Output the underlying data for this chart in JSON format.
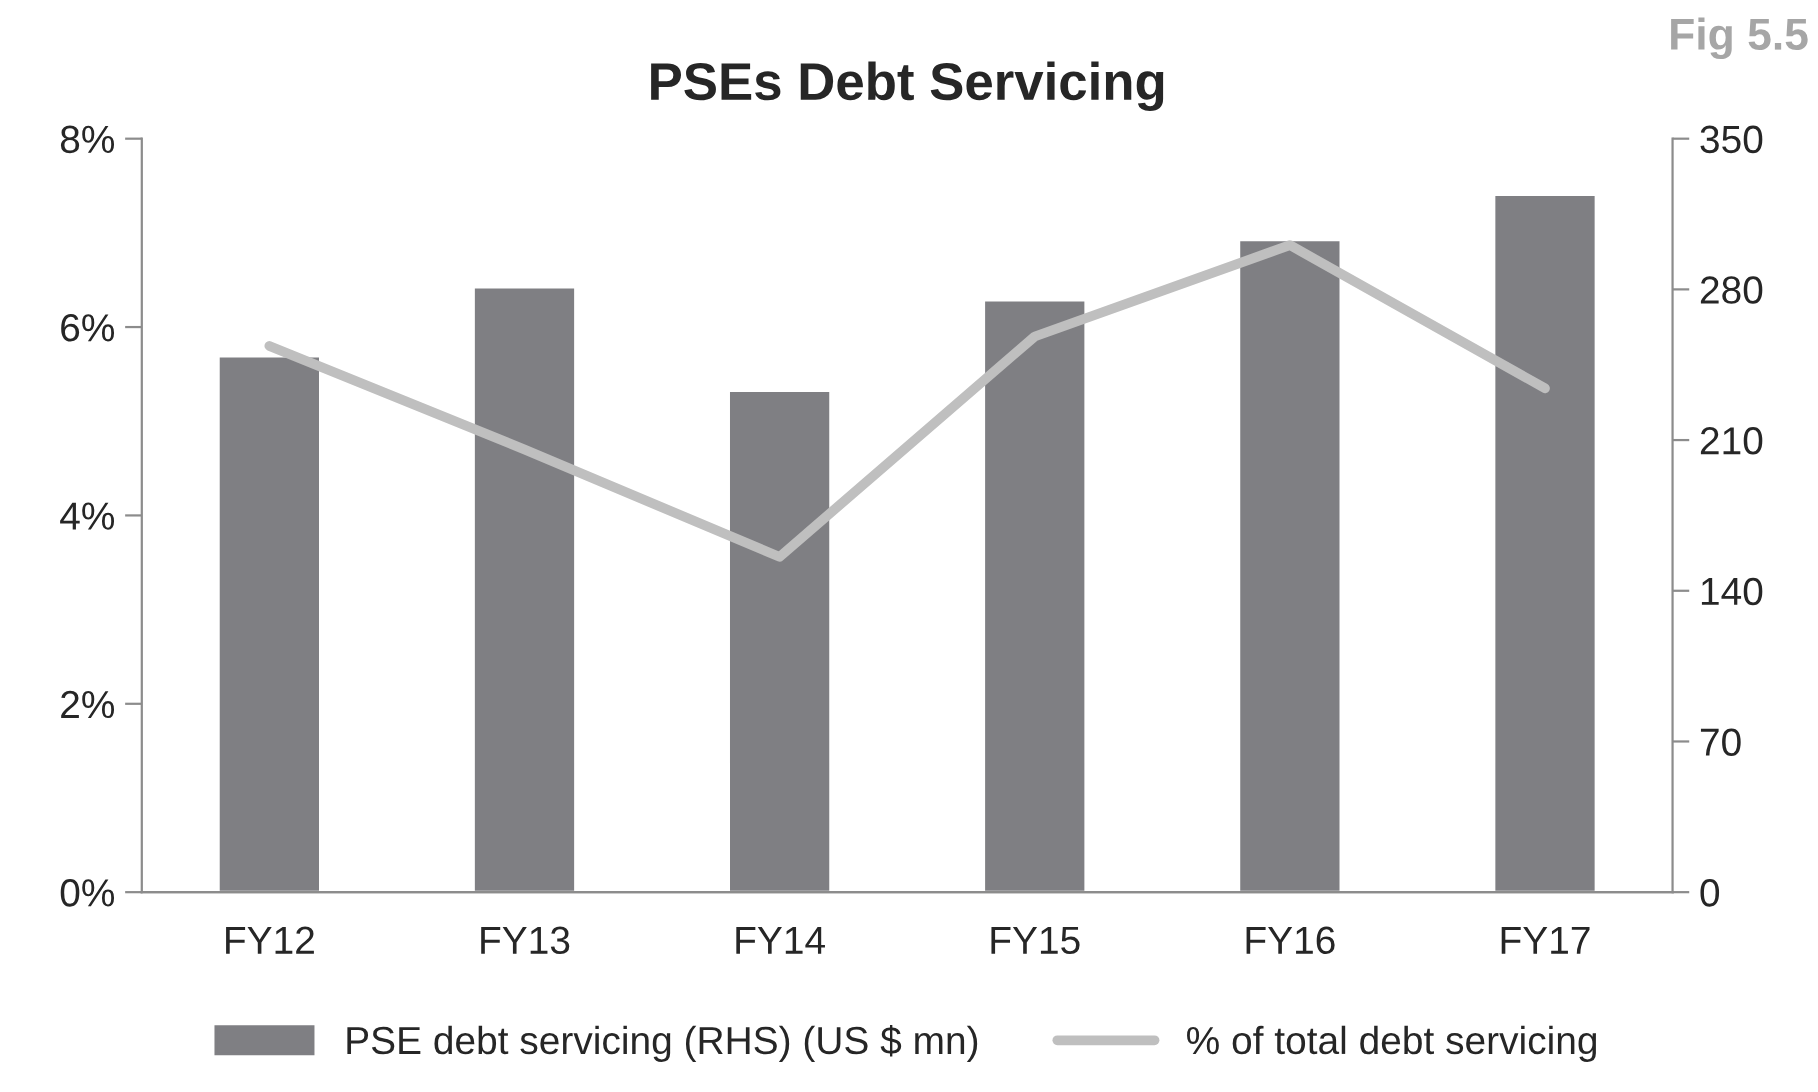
{
  "chart_data": {
    "type": "bar",
    "title": "PSEs Debt Servicing",
    "annotations": [
      "Fig 5.5"
    ],
    "categories": [
      "FY12",
      "FY13",
      "FY14",
      "FY15",
      "FY16",
      "FY17"
    ],
    "series": [
      {
        "name": "PSE debt servicing (RHS) (US $ mn)",
        "color": "#7f7f83",
        "axis": "y2",
        "values": [
          249,
          281,
          233,
          275,
          303,
          324
        ]
      },
      {
        "name": "% of total debt servicing",
        "color": "#bfbfbf",
        "type": "line",
        "values": [
          5.8,
          4.7,
          3.56,
          5.9,
          6.87,
          5.35
        ]
      }
    ],
    "ylim": [
      0,
      8
    ],
    "yticks": [
      {
        "value": 0,
        "label": "0%"
      },
      {
        "value": 2,
        "label": "2%"
      },
      {
        "value": 4,
        "label": "4%"
      },
      {
        "value": 6,
        "label": "6%"
      },
      {
        "value": 8,
        "label": "8%"
      }
    ],
    "y2lim": [
      0,
      350
    ],
    "y2ticks": [
      0,
      70,
      140,
      210,
      280,
      350
    ],
    "grid": false,
    "legend": "bottom",
    "marker": "none",
    "line_style": "solid"
  }
}
